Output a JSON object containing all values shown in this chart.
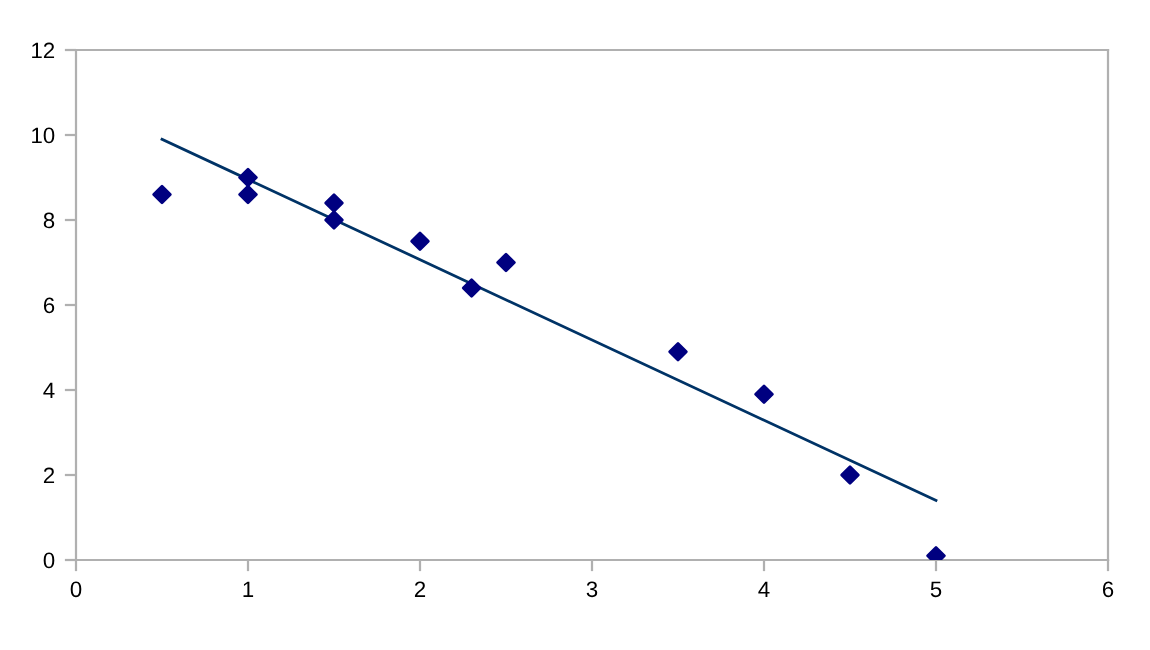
{
  "chart_data": {
    "type": "scatter",
    "xlim": [
      0,
      6
    ],
    "xticks": [
      0,
      1,
      2,
      3,
      4,
      5,
      6
    ],
    "ylim": [
      0,
      12
    ],
    "yticks": [
      0,
      2,
      4,
      6,
      8,
      10,
      12
    ],
    "grid": false,
    "legend": false,
    "series": [
      {
        "color": "#000080",
        "marker": "diamond",
        "x": [
          0.5,
          1,
          1,
          1.5,
          1.5,
          2,
          2.3,
          2.5,
          3.5,
          4,
          4.5,
          5
        ],
        "values": [
          8.6,
          9.0,
          8.6,
          8.4,
          8.0,
          7.5,
          6.4,
          7.0,
          4.9,
          3.9,
          2.0,
          0.1
        ]
      },
      {
        "type": "line",
        "color": "#003366",
        "line_style": "solid",
        "x": [
          0.5,
          5
        ],
        "values": [
          9.9,
          1.4
        ]
      }
    ]
  }
}
